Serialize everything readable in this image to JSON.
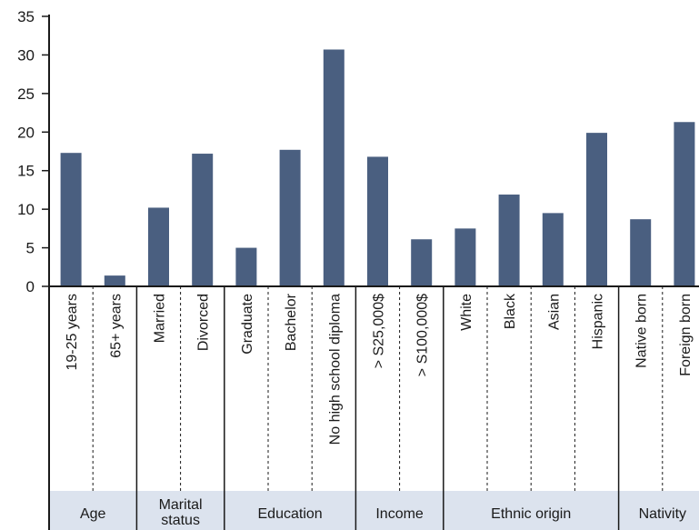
{
  "chart_data": {
    "type": "bar",
    "title": "",
    "xlabel": "",
    "ylabel": "",
    "ylim": [
      0,
      35
    ],
    "yticks": [
      0,
      5,
      10,
      15,
      20,
      25,
      30,
      35
    ],
    "grid": false,
    "bar_color": "#4a5f80",
    "group_band_color": "#dce3ee",
    "groups": [
      {
        "name_lines": [
          "Age"
        ],
        "categories": [
          "19-25 years",
          "65+ years"
        ],
        "values": [
          17.3,
          1.4
        ]
      },
      {
        "name_lines": [
          "Marital",
          "status"
        ],
        "categories": [
          "Married",
          "Divorced"
        ],
        "values": [
          10.2,
          17.2
        ]
      },
      {
        "name_lines": [
          "Education"
        ],
        "categories": [
          "Graduate",
          "Bachelor",
          "No high school diploma"
        ],
        "values": [
          5.0,
          17.7,
          30.7
        ]
      },
      {
        "name_lines": [
          "Income"
        ],
        "categories": [
          "> S25,000$",
          "> S100,000$"
        ],
        "values": [
          16.8,
          6.1
        ]
      },
      {
        "name_lines": [
          "Ethnic origin"
        ],
        "categories": [
          "White",
          "Black",
          "Asian",
          "Hispanic"
        ],
        "values": [
          7.5,
          11.9,
          9.5,
          19.9
        ]
      },
      {
        "name_lines": [
          "Nativity"
        ],
        "categories": [
          "Native born",
          "Foreign born"
        ],
        "values": [
          8.7,
          21.3
        ]
      }
    ]
  }
}
